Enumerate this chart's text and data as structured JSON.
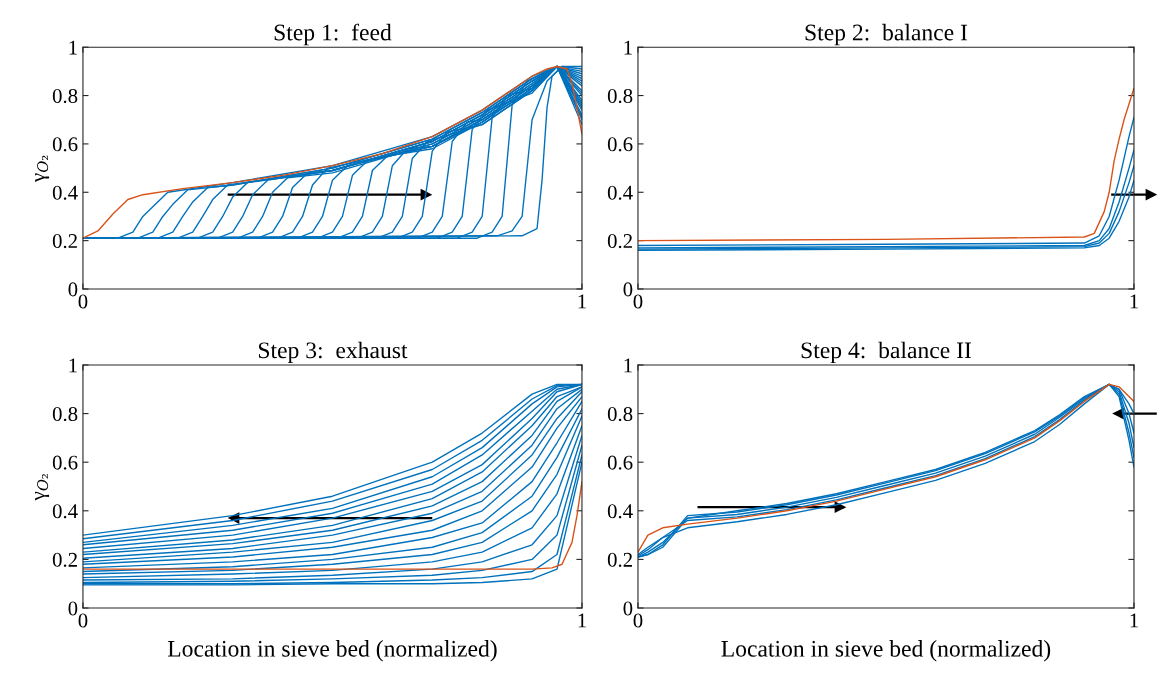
{
  "chart_data": [
    {
      "type": "line",
      "title": "Step 1:  feed",
      "ylabel": "γ$_{O₂}$",
      "xlim": [
        0,
        1
      ],
      "ylim": [
        0,
        1
      ],
      "xticks": [
        0,
        1
      ],
      "yticks": [
        0,
        0.2,
        0.4,
        0.6,
        0.8,
        1
      ],
      "series": [
        {
          "color": "#0072bd",
          "x": [
            0,
            0.07,
            0.1,
            0.12,
            0.14,
            0.17,
            0.3,
            0.5,
            0.7,
            0.8,
            0.9,
            0.95,
            1
          ],
          "values": [
            0.21,
            0.21,
            0.235,
            0.3,
            0.34,
            0.4,
            0.44,
            0.51,
            0.63,
            0.74,
            0.88,
            0.92,
            0.68
          ]
        },
        {
          "color": "#0072bd",
          "x": [
            0,
            0.11,
            0.14,
            0.16,
            0.18,
            0.21,
            0.3,
            0.5,
            0.7,
            0.8,
            0.9,
            0.95,
            1
          ],
          "values": [
            0.21,
            0.21,
            0.235,
            0.3,
            0.35,
            0.41,
            0.43,
            0.5,
            0.62,
            0.73,
            0.87,
            0.92,
            0.7
          ]
        },
        {
          "color": "#0072bd",
          "x": [
            0,
            0.15,
            0.18,
            0.2,
            0.22,
            0.25,
            0.3,
            0.5,
            0.7,
            0.8,
            0.9,
            0.95,
            1
          ],
          "values": [
            0.21,
            0.21,
            0.235,
            0.3,
            0.36,
            0.42,
            0.43,
            0.5,
            0.62,
            0.73,
            0.87,
            0.92,
            0.71
          ]
        },
        {
          "color": "#0072bd",
          "x": [
            0,
            0.19,
            0.22,
            0.24,
            0.26,
            0.29,
            0.5,
            0.7,
            0.8,
            0.9,
            0.95,
            1
          ],
          "values": [
            0.21,
            0.21,
            0.235,
            0.3,
            0.37,
            0.43,
            0.49,
            0.61,
            0.72,
            0.86,
            0.92,
            0.72
          ]
        },
        {
          "color": "#0072bd",
          "x": [
            0,
            0.23,
            0.26,
            0.28,
            0.3,
            0.33,
            0.5,
            0.7,
            0.8,
            0.9,
            0.95,
            1
          ],
          "values": [
            0.21,
            0.21,
            0.235,
            0.3,
            0.38,
            0.44,
            0.49,
            0.61,
            0.72,
            0.86,
            0.92,
            0.74
          ]
        },
        {
          "color": "#0072bd",
          "x": [
            0,
            0.27,
            0.3,
            0.32,
            0.34,
            0.37,
            0.5,
            0.7,
            0.8,
            0.9,
            0.95,
            1
          ],
          "values": [
            0.21,
            0.21,
            0.235,
            0.3,
            0.39,
            0.45,
            0.49,
            0.61,
            0.72,
            0.86,
            0.92,
            0.75
          ]
        },
        {
          "color": "#0072bd",
          "x": [
            0,
            0.31,
            0.34,
            0.36,
            0.38,
            0.41,
            0.5,
            0.7,
            0.8,
            0.9,
            0.95,
            1
          ],
          "values": [
            0.21,
            0.21,
            0.235,
            0.3,
            0.4,
            0.46,
            0.48,
            0.6,
            0.71,
            0.85,
            0.92,
            0.76
          ]
        },
        {
          "color": "#0072bd",
          "x": [
            0,
            0.35,
            0.38,
            0.4,
            0.42,
            0.45,
            0.5,
            0.7,
            0.8,
            0.9,
            0.95,
            1
          ],
          "values": [
            0.21,
            0.21,
            0.235,
            0.3,
            0.42,
            0.48,
            0.49,
            0.6,
            0.71,
            0.85,
            0.92,
            0.77
          ]
        },
        {
          "color": "#0072bd",
          "x": [
            0,
            0.39,
            0.42,
            0.44,
            0.46,
            0.49,
            0.7,
            0.8,
            0.9,
            0.95,
            1
          ],
          "values": [
            0.21,
            0.21,
            0.235,
            0.3,
            0.43,
            0.5,
            0.59,
            0.7,
            0.84,
            0.92,
            0.78
          ]
        },
        {
          "color": "#0072bd",
          "x": [
            0,
            0.43,
            0.46,
            0.48,
            0.5,
            0.53,
            0.7,
            0.8,
            0.9,
            0.95,
            1
          ],
          "values": [
            0.21,
            0.21,
            0.235,
            0.3,
            0.45,
            0.51,
            0.59,
            0.7,
            0.84,
            0.92,
            0.8
          ]
        },
        {
          "color": "#0072bd",
          "x": [
            0,
            0.47,
            0.5,
            0.52,
            0.54,
            0.57,
            0.7,
            0.8,
            0.9,
            0.95,
            1
          ],
          "values": [
            0.21,
            0.21,
            0.235,
            0.3,
            0.47,
            0.53,
            0.59,
            0.7,
            0.84,
            0.92,
            0.81
          ]
        },
        {
          "color": "#0072bd",
          "x": [
            0,
            0.51,
            0.54,
            0.56,
            0.58,
            0.61,
            0.7,
            0.8,
            0.9,
            0.95,
            1
          ],
          "values": [
            0.21,
            0.21,
            0.235,
            0.3,
            0.49,
            0.55,
            0.58,
            0.69,
            0.83,
            0.92,
            0.82
          ]
        },
        {
          "color": "#0072bd",
          "x": [
            0,
            0.55,
            0.58,
            0.6,
            0.62,
            0.65,
            0.7,
            0.8,
            0.9,
            0.95,
            1
          ],
          "values": [
            0.21,
            0.21,
            0.235,
            0.3,
            0.51,
            0.58,
            0.59,
            0.69,
            0.83,
            0.92,
            0.84
          ]
        },
        {
          "color": "#0072bd",
          "x": [
            0,
            0.59,
            0.62,
            0.64,
            0.66,
            0.69,
            0.8,
            0.9,
            0.95,
            1
          ],
          "values": [
            0.21,
            0.21,
            0.235,
            0.3,
            0.54,
            0.61,
            0.68,
            0.82,
            0.92,
            0.85
          ]
        },
        {
          "color": "#0072bd",
          "x": [
            0,
            0.63,
            0.66,
            0.68,
            0.7,
            0.73,
            0.8,
            0.9,
            0.95,
            1
          ],
          "values": [
            0.21,
            0.21,
            0.235,
            0.3,
            0.57,
            0.65,
            0.68,
            0.82,
            0.92,
            0.86
          ]
        },
        {
          "color": "#0072bd",
          "x": [
            0,
            0.67,
            0.7,
            0.72,
            0.74,
            0.77,
            0.8,
            0.9,
            0.95,
            1
          ],
          "values": [
            0.21,
            0.21,
            0.235,
            0.3,
            0.61,
            0.69,
            0.7,
            0.82,
            0.92,
            0.87
          ]
        },
        {
          "color": "#0072bd",
          "x": [
            0,
            0.71,
            0.74,
            0.76,
            0.78,
            0.81,
            0.9,
            0.95,
            1
          ],
          "values": [
            0.21,
            0.21,
            0.235,
            0.3,
            0.66,
            0.74,
            0.81,
            0.92,
            0.88
          ]
        },
        {
          "color": "#0072bd",
          "x": [
            0,
            0.75,
            0.78,
            0.8,
            0.82,
            0.85,
            0.9,
            0.95,
            1
          ],
          "values": [
            0.21,
            0.21,
            0.235,
            0.3,
            0.71,
            0.8,
            0.83,
            0.92,
            0.89
          ]
        },
        {
          "color": "#0072bd",
          "x": [
            0,
            0.79,
            0.82,
            0.84,
            0.86,
            0.89,
            0.95,
            1
          ],
          "values": [
            0.21,
            0.21,
            0.235,
            0.3,
            0.76,
            0.86,
            0.92,
            0.9
          ]
        },
        {
          "color": "#0072bd",
          "x": [
            0,
            0.83,
            0.86,
            0.88,
            0.9,
            0.93,
            0.96,
            1
          ],
          "values": [
            0.21,
            0.22,
            0.24,
            0.3,
            0.7,
            0.86,
            0.92,
            0.91
          ]
        },
        {
          "color": "#0072bd",
          "x": [
            0,
            0.88,
            0.91,
            0.92,
            0.93,
            0.94,
            0.96,
            1
          ],
          "values": [
            0.21,
            0.22,
            0.25,
            0.45,
            0.75,
            0.88,
            0.92,
            0.92
          ]
        },
        {
          "color": "#d95319",
          "x": [
            0,
            0.03,
            0.06,
            0.09,
            0.12,
            0.2,
            0.3,
            0.4,
            0.5,
            0.6,
            0.7,
            0.8,
            0.85,
            0.9,
            0.93,
            0.95,
            0.97,
            0.98,
            0.99,
            1
          ],
          "values": [
            0.21,
            0.24,
            0.31,
            0.37,
            0.39,
            0.415,
            0.44,
            0.47,
            0.51,
            0.56,
            0.63,
            0.74,
            0.81,
            0.88,
            0.91,
            0.92,
            0.91,
            0.85,
            0.75,
            0.64
          ]
        }
      ]
    },
    {
      "type": "line",
      "title": "Step 2:  balance I",
      "xlim": [
        0,
        1
      ],
      "ylim": [
        0,
        1
      ],
      "xticks": [
        0,
        1
      ],
      "yticks": [
        0,
        0.2,
        0.4,
        0.6,
        0.8,
        1
      ],
      "series": [
        {
          "color": "#0072bd",
          "x": [
            0,
            0.5,
            0.9,
            0.93,
            0.95,
            0.97,
            0.99,
            1
          ],
          "values": [
            0.18,
            0.185,
            0.19,
            0.22,
            0.3,
            0.45,
            0.63,
            0.71
          ]
        },
        {
          "color": "#0072bd",
          "x": [
            0,
            0.5,
            0.9,
            0.93,
            0.95,
            0.97,
            0.99,
            1
          ],
          "values": [
            0.17,
            0.175,
            0.18,
            0.2,
            0.25,
            0.36,
            0.5,
            0.575
          ]
        },
        {
          "color": "#0072bd",
          "x": [
            0,
            0.5,
            0.9,
            0.93,
            0.95,
            0.97,
            0.99,
            1
          ],
          "values": [
            0.165,
            0.17,
            0.175,
            0.19,
            0.23,
            0.32,
            0.44,
            0.51
          ]
        },
        {
          "color": "#0072bd",
          "x": [
            0,
            0.5,
            0.9,
            0.93,
            0.95,
            0.97,
            0.99,
            1
          ],
          "values": [
            0.16,
            0.165,
            0.17,
            0.18,
            0.21,
            0.28,
            0.38,
            0.45
          ]
        },
        {
          "color": "#d95319",
          "x": [
            0,
            0.5,
            0.9,
            0.92,
            0.94,
            0.95,
            0.96,
            0.97,
            0.98,
            1
          ],
          "values": [
            0.2,
            0.205,
            0.215,
            0.23,
            0.32,
            0.4,
            0.53,
            0.62,
            0.7,
            0.83
          ]
        }
      ]
    },
    {
      "type": "line",
      "title": "Step 3:  exhaust",
      "ylabel": "γ$_{O₂}$",
      "xlabel": "Location in sieve bed (normalized)",
      "xlim": [
        0,
        1
      ],
      "ylim": [
        0,
        1
      ],
      "xticks": [
        0,
        1
      ],
      "yticks": [
        0,
        0.2,
        0.4,
        0.6,
        0.8,
        1
      ],
      "series": [
        {
          "color": "#0072bd",
          "x": [
            0,
            0.3,
            0.5,
            0.7,
            0.8,
            0.9,
            0.95,
            1
          ],
          "values": [
            0.3,
            0.38,
            0.46,
            0.6,
            0.72,
            0.88,
            0.92,
            0.92
          ]
        },
        {
          "color": "#0072bd",
          "x": [
            0,
            0.3,
            0.5,
            0.7,
            0.8,
            0.9,
            0.95,
            1
          ],
          "values": [
            0.285,
            0.36,
            0.44,
            0.57,
            0.69,
            0.86,
            0.915,
            0.92
          ]
        },
        {
          "color": "#0072bd",
          "x": [
            0,
            0.3,
            0.5,
            0.7,
            0.8,
            0.9,
            0.95,
            1
          ],
          "values": [
            0.27,
            0.34,
            0.41,
            0.54,
            0.66,
            0.84,
            0.91,
            0.92
          ]
        },
        {
          "color": "#0072bd",
          "x": [
            0,
            0.3,
            0.5,
            0.7,
            0.8,
            0.9,
            0.95,
            1
          ],
          "values": [
            0.26,
            0.32,
            0.39,
            0.51,
            0.63,
            0.81,
            0.9,
            0.92
          ]
        },
        {
          "color": "#0072bd",
          "x": [
            0,
            0.3,
            0.5,
            0.7,
            0.8,
            0.9,
            0.95,
            1
          ],
          "values": [
            0.245,
            0.3,
            0.37,
            0.48,
            0.59,
            0.78,
            0.89,
            0.92
          ]
        },
        {
          "color": "#0072bd",
          "x": [
            0,
            0.3,
            0.5,
            0.7,
            0.8,
            0.9,
            0.95,
            1
          ],
          "values": [
            0.23,
            0.28,
            0.34,
            0.45,
            0.56,
            0.75,
            0.87,
            0.91
          ]
        },
        {
          "color": "#0072bd",
          "x": [
            0,
            0.3,
            0.5,
            0.7,
            0.8,
            0.9,
            0.95,
            1
          ],
          "values": [
            0.22,
            0.265,
            0.32,
            0.42,
            0.52,
            0.71,
            0.85,
            0.91
          ]
        },
        {
          "color": "#0072bd",
          "x": [
            0,
            0.3,
            0.5,
            0.7,
            0.8,
            0.9,
            0.95,
            1
          ],
          "values": [
            0.205,
            0.245,
            0.3,
            0.39,
            0.48,
            0.67,
            0.82,
            0.9
          ]
        },
        {
          "color": "#0072bd",
          "x": [
            0,
            0.3,
            0.5,
            0.7,
            0.8,
            0.9,
            0.95,
            1
          ],
          "values": [
            0.19,
            0.23,
            0.27,
            0.36,
            0.44,
            0.63,
            0.78,
            0.89
          ]
        },
        {
          "color": "#0072bd",
          "x": [
            0,
            0.3,
            0.5,
            0.7,
            0.8,
            0.9,
            0.95,
            1
          ],
          "values": [
            0.18,
            0.21,
            0.25,
            0.32,
            0.4,
            0.58,
            0.74,
            0.87
          ]
        },
        {
          "color": "#0072bd",
          "x": [
            0,
            0.3,
            0.5,
            0.7,
            0.8,
            0.9,
            0.95,
            1
          ],
          "values": [
            0.165,
            0.19,
            0.22,
            0.29,
            0.35,
            0.52,
            0.68,
            0.85
          ]
        },
        {
          "color": "#0072bd",
          "x": [
            0,
            0.3,
            0.5,
            0.7,
            0.8,
            0.9,
            0.95,
            1
          ],
          "values": [
            0.15,
            0.17,
            0.2,
            0.25,
            0.31,
            0.46,
            0.62,
            0.82
          ]
        },
        {
          "color": "#0072bd",
          "x": [
            0,
            0.3,
            0.5,
            0.7,
            0.8,
            0.9,
            0.95,
            1
          ],
          "values": [
            0.14,
            0.155,
            0.18,
            0.22,
            0.27,
            0.4,
            0.55,
            0.79
          ]
        },
        {
          "color": "#0072bd",
          "x": [
            0,
            0.3,
            0.5,
            0.7,
            0.8,
            0.9,
            0.95,
            1
          ],
          "values": [
            0.125,
            0.14,
            0.155,
            0.19,
            0.23,
            0.33,
            0.47,
            0.75
          ]
        },
        {
          "color": "#0072bd",
          "x": [
            0,
            0.3,
            0.5,
            0.7,
            0.8,
            0.9,
            0.95,
            1
          ],
          "values": [
            0.115,
            0.12,
            0.135,
            0.16,
            0.19,
            0.26,
            0.38,
            0.71
          ]
        },
        {
          "color": "#0072bd",
          "x": [
            0,
            0.3,
            0.5,
            0.7,
            0.8,
            0.9,
            0.95,
            1
          ],
          "values": [
            0.105,
            0.11,
            0.12,
            0.135,
            0.155,
            0.2,
            0.3,
            0.67
          ]
        },
        {
          "color": "#0072bd",
          "x": [
            0,
            0.3,
            0.5,
            0.7,
            0.8,
            0.9,
            0.95,
            1
          ],
          "values": [
            0.1,
            0.1,
            0.105,
            0.115,
            0.125,
            0.15,
            0.22,
            0.63
          ]
        },
        {
          "color": "#0072bd",
          "x": [
            0,
            0.3,
            0.5,
            0.7,
            0.8,
            0.9,
            0.95,
            1
          ],
          "values": [
            0.095,
            0.095,
            0.1,
            0.1,
            0.105,
            0.12,
            0.16,
            0.6
          ]
        },
        {
          "color": "#d95319",
          "x": [
            0,
            0.5,
            0.9,
            0.94,
            0.96,
            0.98,
            0.99,
            1
          ],
          "values": [
            0.16,
            0.16,
            0.16,
            0.165,
            0.18,
            0.27,
            0.38,
            0.52
          ]
        }
      ]
    },
    {
      "type": "line",
      "title": "Step 4:  balance II",
      "xlabel": "Location in sieve bed (normalized)",
      "xlim": [
        0,
        1
      ],
      "ylim": [
        0,
        1
      ],
      "xticks": [
        0,
        1
      ],
      "yticks": [
        0,
        0.2,
        0.4,
        0.6,
        0.8,
        1
      ],
      "series": [
        {
          "color": "#0072bd",
          "x": [
            0,
            0.02,
            0.05,
            0.1,
            0.2,
            0.3,
            0.4,
            0.5,
            0.6,
            0.7,
            0.8,
            0.85,
            0.9,
            0.95,
            0.97,
            0.99,
            1
          ],
          "values": [
            0.22,
            0.25,
            0.29,
            0.33,
            0.355,
            0.385,
            0.425,
            0.475,
            0.525,
            0.595,
            0.685,
            0.755,
            0.84,
            0.92,
            0.9,
            0.8,
            0.72
          ]
        },
        {
          "color": "#0072bd",
          "x": [
            0,
            0.02,
            0.05,
            0.1,
            0.2,
            0.3,
            0.4,
            0.5,
            0.6,
            0.7,
            0.8,
            0.85,
            0.9,
            0.95,
            0.97,
            0.99,
            1
          ],
          "values": [
            0.215,
            0.24,
            0.29,
            0.36,
            0.375,
            0.405,
            0.445,
            0.495,
            0.545,
            0.615,
            0.705,
            0.775,
            0.855,
            0.92,
            0.89,
            0.76,
            0.66
          ]
        },
        {
          "color": "#0072bd",
          "x": [
            0,
            0.02,
            0.05,
            0.1,
            0.2,
            0.3,
            0.4,
            0.5,
            0.6,
            0.7,
            0.8,
            0.85,
            0.9,
            0.95,
            0.97,
            0.99,
            1
          ],
          "values": [
            0.21,
            0.23,
            0.27,
            0.37,
            0.385,
            0.415,
            0.455,
            0.505,
            0.555,
            0.625,
            0.715,
            0.785,
            0.86,
            0.92,
            0.88,
            0.72,
            0.62
          ]
        },
        {
          "color": "#0072bd",
          "x": [
            0,
            0.02,
            0.05,
            0.1,
            0.2,
            0.3,
            0.4,
            0.5,
            0.6,
            0.7,
            0.8,
            0.85,
            0.9,
            0.95,
            0.97,
            0.99,
            1
          ],
          "values": [
            0.21,
            0.22,
            0.26,
            0.38,
            0.395,
            0.425,
            0.465,
            0.515,
            0.565,
            0.635,
            0.725,
            0.79,
            0.865,
            0.92,
            0.87,
            0.69,
            0.58
          ]
        },
        {
          "color": "#0072bd",
          "x": [
            0,
            0.02,
            0.05,
            0.1,
            0.2,
            0.3,
            0.4,
            0.5,
            0.6,
            0.7,
            0.8,
            0.85,
            0.9,
            0.95,
            0.97,
            0.99,
            1
          ],
          "values": [
            0.21,
            0.22,
            0.25,
            0.37,
            0.4,
            0.43,
            0.47,
            0.52,
            0.57,
            0.64,
            0.73,
            0.795,
            0.87,
            0.92,
            0.9,
            0.84,
            0.8
          ]
        },
        {
          "color": "#d95319",
          "x": [
            0,
            0.02,
            0.05,
            0.1,
            0.2,
            0.3,
            0.4,
            0.5,
            0.6,
            0.7,
            0.8,
            0.85,
            0.9,
            0.95,
            0.97,
            1
          ],
          "values": [
            0.23,
            0.3,
            0.33,
            0.345,
            0.37,
            0.4,
            0.44,
            0.49,
            0.54,
            0.61,
            0.7,
            0.77,
            0.85,
            0.92,
            0.91,
            0.85
          ]
        }
      ]
    }
  ]
}
